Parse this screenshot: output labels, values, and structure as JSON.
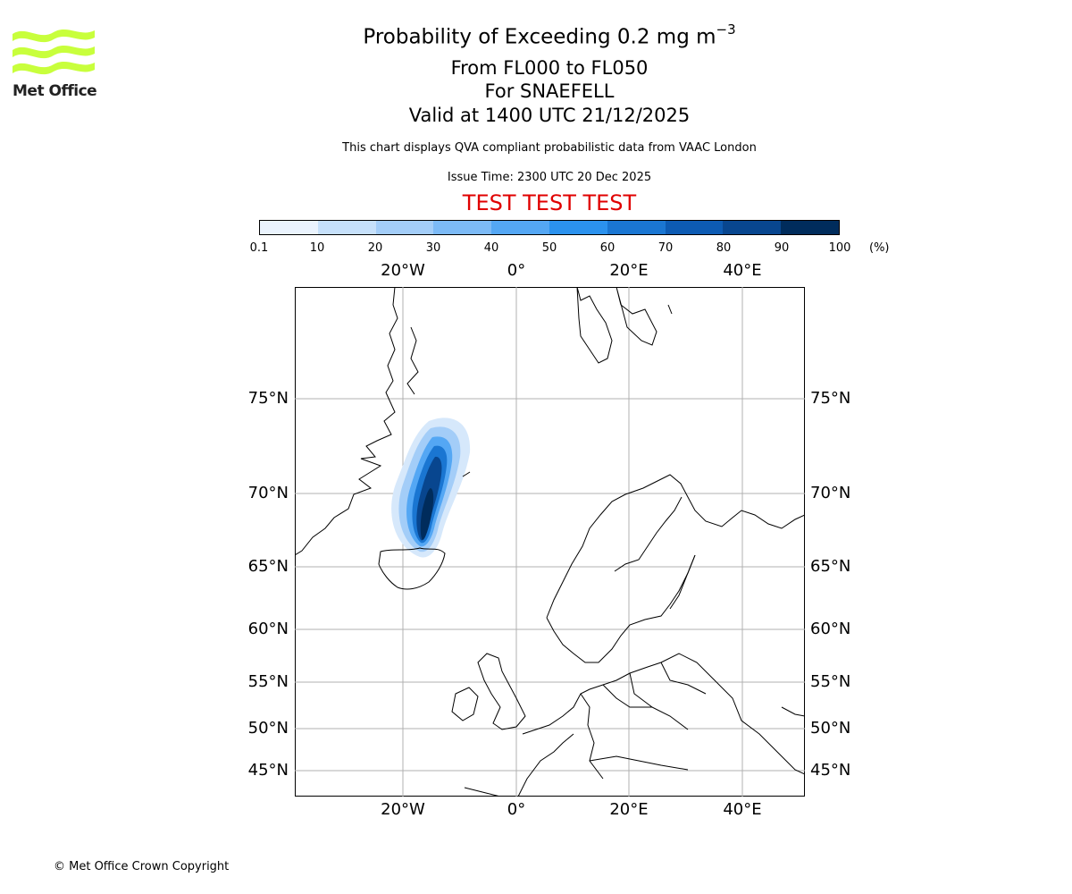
{
  "header": {
    "title": "Probability of Exceeding 0.2 mg m",
    "title_sup": "−3",
    "line1": "From FL000 to FL050",
    "line2": "For SNAEFELL",
    "line3": "Valid at 1400 UTC 21/12/2025",
    "description": "This chart displays QVA compliant probabilistic data from VAAC London",
    "issue_time": "Issue Time: 2300 UTC 20 Dec 2025",
    "test_banner": "TEST TEST TEST",
    "test_color": "#e00000"
  },
  "logo": {
    "text": "Met Office",
    "icon": "met-office-wave-logo",
    "color": "#c8ff3c"
  },
  "colorbar": {
    "ticks": [
      "0.1",
      "10",
      "20",
      "30",
      "40",
      "50",
      "60",
      "70",
      "80",
      "90",
      "100"
    ],
    "unit": "(%)",
    "colors": [
      "#eaf3fd",
      "#c6e0fa",
      "#a3cdf8",
      "#7cbaf6",
      "#54a7f4",
      "#2b92ee",
      "#1a76d2",
      "#0d5bb3",
      "#08468f",
      "#002c5c"
    ]
  },
  "map": {
    "lon_labels": [
      "20°W",
      "0°",
      "20°E",
      "40°E"
    ],
    "lat_labels": [
      "75°N",
      "70°N",
      "65°N",
      "60°N",
      "55°N",
      "50°N",
      "45°N"
    ],
    "plume_max_probability": 100
  },
  "footer": {
    "copyright": "© Met Office Crown Copyright"
  }
}
